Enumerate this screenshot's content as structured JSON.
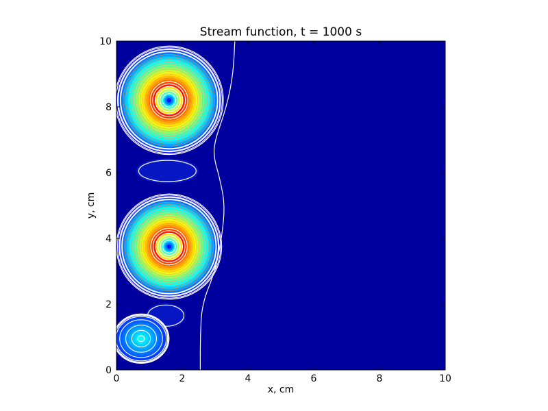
{
  "chart_data": {
    "type": "heatmap",
    "title": "Stream function, t = 1000 s",
    "xlabel": "x, cm",
    "ylabel": "y, cm",
    "xlim": [
      0,
      10
    ],
    "ylim": [
      0,
      10
    ],
    "xticks": [
      0,
      2,
      4,
      6,
      8,
      10
    ],
    "yticks": [
      0,
      2,
      4,
      6,
      8,
      10
    ],
    "colormap": "jet",
    "background_color": "#00009f",
    "contour_color": "#ffffff",
    "grid": false,
    "vortices": [
      {
        "name": "upper",
        "center": [
          1.6,
          8.2
        ],
        "radius": [
          1.65,
          1.65
        ],
        "intensity": 1.0,
        "rings": 20
      },
      {
        "name": "middle",
        "center": [
          1.6,
          3.75
        ],
        "radius": [
          1.6,
          1.6
        ],
        "intensity": 1.0,
        "rings": 20
      },
      {
        "name": "lower",
        "center": [
          0.75,
          0.95
        ],
        "radius": [
          0.85,
          0.75
        ],
        "intensity": 0.15,
        "rings": 5
      }
    ],
    "small_cells": [
      {
        "center": [
          1.55,
          6.05
        ],
        "radius": [
          0.95,
          0.38
        ]
      },
      {
        "center": [
          1.5,
          1.65
        ],
        "radius": [
          0.6,
          0.38
        ]
      }
    ],
    "zero_contour": [
      [
        3.6,
        10
      ],
      [
        3.55,
        9.0
      ],
      [
        3.35,
        8.0
      ],
      [
        3.0,
        7.0
      ],
      [
        2.95,
        6.5
      ],
      [
        3.15,
        5.8
      ],
      [
        3.3,
        5.0
      ],
      [
        3.2,
        4.0
      ],
      [
        3.0,
        3.0
      ],
      [
        2.6,
        2.0
      ],
      [
        2.55,
        1.0
      ],
      [
        2.55,
        0
      ]
    ]
  }
}
